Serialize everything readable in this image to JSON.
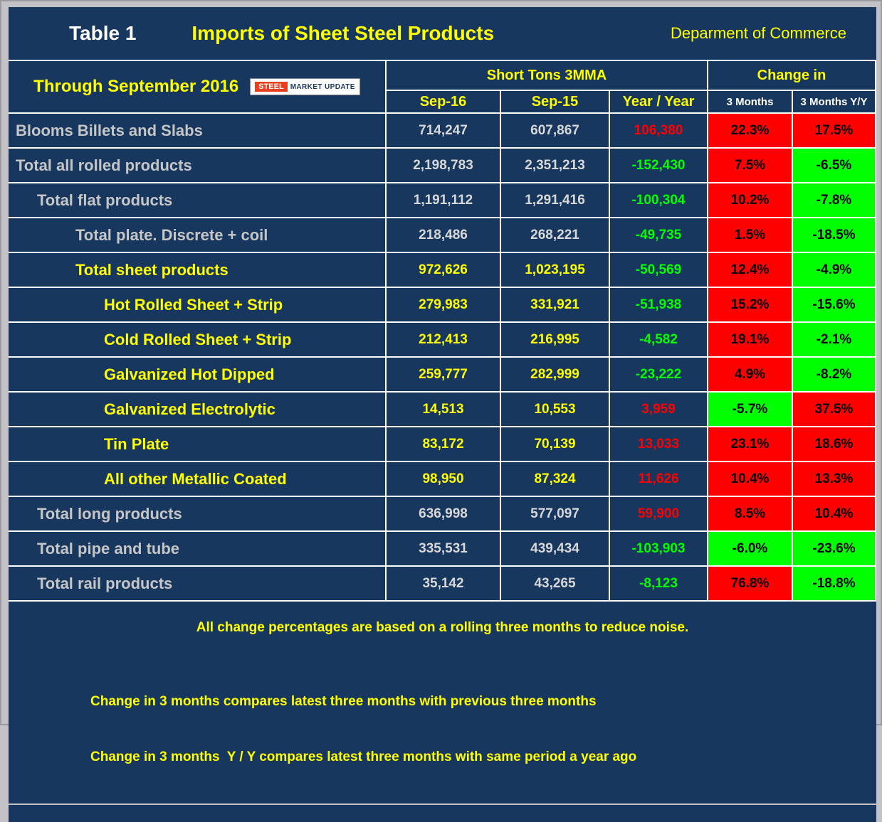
{
  "header": {
    "table_label": "Table 1",
    "title": "Imports of Sheet Steel Products",
    "source": "Deparment of Commerce"
  },
  "subheader": {
    "period": "Through September 2016",
    "logo": {
      "steel": "STEEL",
      "rest": "MARKET UPDATE"
    },
    "group_tons": "Short Tons 3MMA",
    "group_change": "Change in"
  },
  "columns": {
    "sep16": "Sep-16",
    "sep15": "Sep-15",
    "year_year": "Year / Year",
    "m3": "3 Months",
    "m3yy": "3 Months Y/Y"
  },
  "colors": {
    "navy": "#17375E",
    "yellow": "#FFFF00",
    "red": "#FF0000",
    "green": "#00FF00",
    "gray_text": "#C6C6C6",
    "frame_gray": "#C3C3C7"
  },
  "rows": [
    {
      "label": "Blooms Billets and Slabs",
      "level": 0,
      "theme": "gray",
      "sep16": "714,247",
      "sep15": "607,867",
      "yy": "106,380",
      "yy_color": "red",
      "m3": "22.3%",
      "m3_bg": "red",
      "m3yy": "17.5%",
      "m3yy_bg": "red"
    },
    {
      "label": "Total all rolled products",
      "level": 0,
      "theme": "gray",
      "sep16": "2,198,783",
      "sep15": "2,351,213",
      "yy": "-152,430",
      "yy_color": "green",
      "m3": "7.5%",
      "m3_bg": "red",
      "m3yy": "-6.5%",
      "m3yy_bg": "green"
    },
    {
      "label": "Total flat products",
      "level": 1,
      "theme": "gray",
      "sep16": "1,191,112",
      "sep15": "1,291,416",
      "yy": "-100,304",
      "yy_color": "green",
      "m3": "10.2%",
      "m3_bg": "red",
      "m3yy": "-7.8%",
      "m3yy_bg": "green"
    },
    {
      "label": "Total plate. Discrete + coil",
      "level": 2,
      "theme": "gray",
      "sep16": "218,486",
      "sep15": "268,221",
      "yy": "-49,735",
      "yy_color": "green",
      "m3": "1.5%",
      "m3_bg": "red",
      "m3yy": "-18.5%",
      "m3yy_bg": "green"
    },
    {
      "label": "Total sheet products",
      "level": 2,
      "theme": "yellow",
      "sep16": "972,626",
      "sep15": "1,023,195",
      "yy": "-50,569",
      "yy_color": "green",
      "m3": "12.4%",
      "m3_bg": "red",
      "m3yy": "-4.9%",
      "m3yy_bg": "green"
    },
    {
      "label": "Hot Rolled Sheet + Strip",
      "level": 3,
      "theme": "yellow",
      "sep16": "279,983",
      "sep15": "331,921",
      "yy": "-51,938",
      "yy_color": "green",
      "m3": "15.2%",
      "m3_bg": "red",
      "m3yy": "-15.6%",
      "m3yy_bg": "green"
    },
    {
      "label": "Cold Rolled Sheet + Strip",
      "level": 3,
      "theme": "yellow",
      "sep16": "212,413",
      "sep15": "216,995",
      "yy": "-4,582",
      "yy_color": "green",
      "m3": "19.1%",
      "m3_bg": "red",
      "m3yy": "-2.1%",
      "m3yy_bg": "green"
    },
    {
      "label": "Galvanized Hot Dipped",
      "level": 3,
      "theme": "yellow",
      "sep16": "259,777",
      "sep15": "282,999",
      "yy": "-23,222",
      "yy_color": "green",
      "m3": "4.9%",
      "m3_bg": "red",
      "m3yy": "-8.2%",
      "m3yy_bg": "green"
    },
    {
      "label": "Galvanized Electrolytic",
      "level": 3,
      "theme": "yellow",
      "sep16": "14,513",
      "sep15": "10,553",
      "yy": "3,959",
      "yy_color": "red",
      "m3": "-5.7%",
      "m3_bg": "green",
      "m3yy": "37.5%",
      "m3yy_bg": "red"
    },
    {
      "label": "Tin Plate",
      "level": 3,
      "theme": "yellow",
      "sep16": "83,172",
      "sep15": "70,139",
      "yy": "13,033",
      "yy_color": "red",
      "m3": "23.1%",
      "m3_bg": "red",
      "m3yy": "18.6%",
      "m3yy_bg": "red"
    },
    {
      "label": "All other Metallic Coated",
      "level": 3,
      "theme": "yellow",
      "sep16": "98,950",
      "sep15": "87,324",
      "yy": "11,626",
      "yy_color": "red",
      "m3": "10.4%",
      "m3_bg": "red",
      "m3yy": "13.3%",
      "m3yy_bg": "red"
    },
    {
      "label": "Total long products",
      "level": 1,
      "theme": "gray",
      "sep16": "636,998",
      "sep15": "577,097",
      "yy": "59,900",
      "yy_color": "red",
      "m3": "8.5%",
      "m3_bg": "red",
      "m3yy": "10.4%",
      "m3yy_bg": "red"
    },
    {
      "label": "Total pipe and tube",
      "level": 1,
      "theme": "gray",
      "sep16": "335,531",
      "sep15": "439,434",
      "yy": "-103,903",
      "yy_color": "green",
      "m3": "-6.0%",
      "m3_bg": "green",
      "m3yy": "-23.6%",
      "m3yy_bg": "green"
    },
    {
      "label": "Total rail products",
      "level": 1,
      "theme": "gray",
      "sep16": "35,142",
      "sep15": "43,265",
      "yy": "-8,123",
      "yy_color": "green",
      "m3": "76.8%",
      "m3_bg": "red",
      "m3yy": "-18.8%",
      "m3yy_bg": "green"
    }
  ],
  "footer": {
    "line1": "All change percentages are based on a rolling three months to reduce noise.",
    "line2": "Change in 3 months compares latest three months with previous three months",
    "line3": "Change in 3 months  Y / Y compares latest three months with same period a year ago"
  },
  "chart_data": {
    "type": "table",
    "title": "Imports of Sheet Steel Products",
    "source": "Deparment of Commerce",
    "period": "Through September 2016",
    "unit": "Short Tons 3MMA",
    "columns": [
      "Sep-16",
      "Sep-15",
      "Year / Year",
      "3 Months",
      "3 Months Y/Y"
    ],
    "rows": [
      {
        "label": "Blooms Billets and Slabs",
        "sep16": 714247,
        "sep15": 607867,
        "year_year": 106380,
        "chg_3m_pct": 22.3,
        "chg_3m_yy_pct": 17.5
      },
      {
        "label": "Total all rolled products",
        "sep16": 2198783,
        "sep15": 2351213,
        "year_year": -152430,
        "chg_3m_pct": 7.5,
        "chg_3m_yy_pct": -6.5
      },
      {
        "label": "Total flat products",
        "sep16": 1191112,
        "sep15": 1291416,
        "year_year": -100304,
        "chg_3m_pct": 10.2,
        "chg_3m_yy_pct": -7.8
      },
      {
        "label": "Total plate. Discrete + coil",
        "sep16": 218486,
        "sep15": 268221,
        "year_year": -49735,
        "chg_3m_pct": 1.5,
        "chg_3m_yy_pct": -18.5
      },
      {
        "label": "Total sheet products",
        "sep16": 972626,
        "sep15": 1023195,
        "year_year": -50569,
        "chg_3m_pct": 12.4,
        "chg_3m_yy_pct": -4.9
      },
      {
        "label": "Hot Rolled Sheet + Strip",
        "sep16": 279983,
        "sep15": 331921,
        "year_year": -51938,
        "chg_3m_pct": 15.2,
        "chg_3m_yy_pct": -15.6
      },
      {
        "label": "Cold Rolled Sheet + Strip",
        "sep16": 212413,
        "sep15": 216995,
        "year_year": -4582,
        "chg_3m_pct": 19.1,
        "chg_3m_yy_pct": -2.1
      },
      {
        "label": "Galvanized Hot Dipped",
        "sep16": 259777,
        "sep15": 282999,
        "year_year": -23222,
        "chg_3m_pct": 4.9,
        "chg_3m_yy_pct": -8.2
      },
      {
        "label": "Galvanized Electrolytic",
        "sep16": 14513,
        "sep15": 10553,
        "year_year": 3959,
        "chg_3m_pct": -5.7,
        "chg_3m_yy_pct": 37.5
      },
      {
        "label": "Tin Plate",
        "sep16": 83172,
        "sep15": 70139,
        "year_year": 13033,
        "chg_3m_pct": 23.1,
        "chg_3m_yy_pct": 18.6
      },
      {
        "label": "All other Metallic Coated",
        "sep16": 98950,
        "sep15": 87324,
        "year_year": 11626,
        "chg_3m_pct": 10.4,
        "chg_3m_yy_pct": 13.3
      },
      {
        "label": "Total long products",
        "sep16": 636998,
        "sep15": 577097,
        "year_year": 59900,
        "chg_3m_pct": 8.5,
        "chg_3m_yy_pct": 10.4
      },
      {
        "label": "Total pipe and tube",
        "sep16": 335531,
        "sep15": 439434,
        "year_year": -103903,
        "chg_3m_pct": -6.0,
        "chg_3m_yy_pct": -23.6
      },
      {
        "label": "Total rail products",
        "sep16": 35142,
        "sep15": 43265,
        "year_year": -8123,
        "chg_3m_pct": 76.8,
        "chg_3m_yy_pct": -18.8
      }
    ]
  }
}
